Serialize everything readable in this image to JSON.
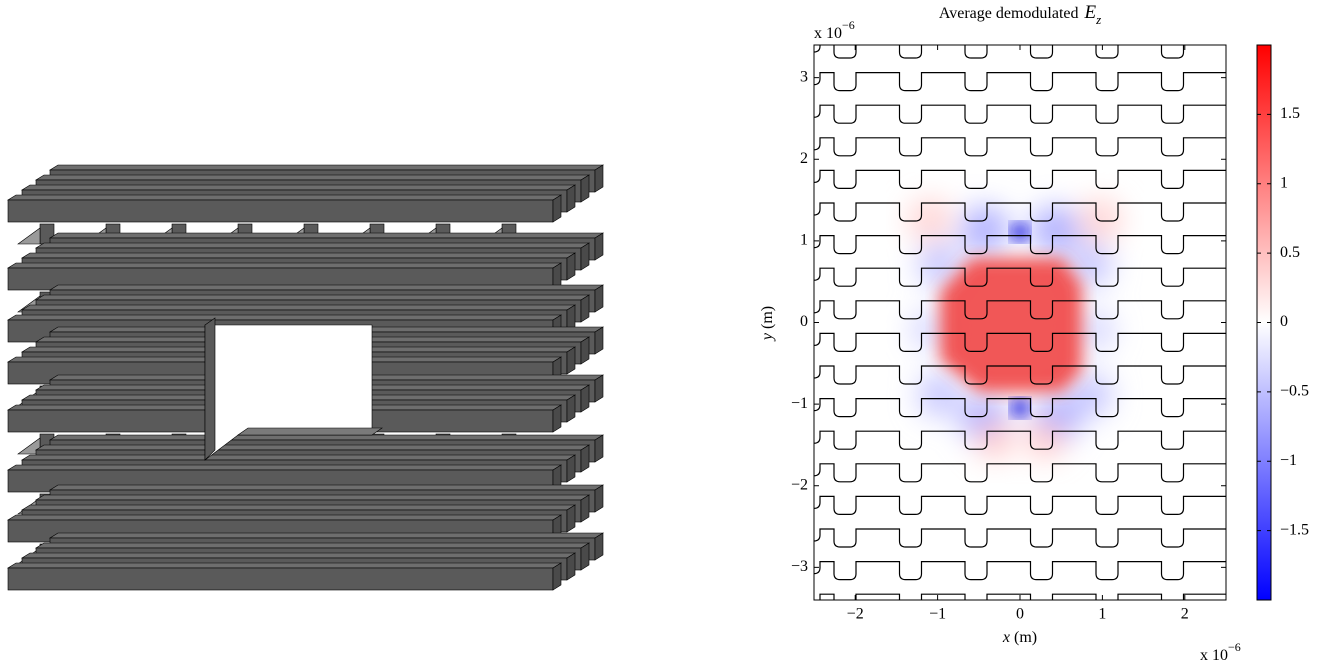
{
  "chart_data": {
    "type": "heatmap",
    "title": "Average demodulated",
    "title_symbol": "E",
    "title_subscript": "z",
    "x_label_symbol": "x",
    "x_label_unit": "(m)",
    "y_label_symbol": "y",
    "y_label_unit": "(m)",
    "x_multiplier": "x 10",
    "x_multiplier_exponent": "−6",
    "y_multiplier": "x 10",
    "y_multiplier_exponent": "−6",
    "xlim": [
      -2.5,
      2.5
    ],
    "xticks": [
      {
        "value": -2,
        "label": "−2"
      },
      {
        "value": -1,
        "label": "−1"
      },
      0,
      1,
      2
    ],
    "ylim": [
      -3.4,
      3.4
    ],
    "yticks": [
      {
        "value": -3,
        "label": "−3"
      },
      {
        "value": -2,
        "label": "−2"
      },
      {
        "value": -1,
        "label": "−1"
      },
      0,
      1,
      2,
      3
    ],
    "colorbar": {
      "lim": [
        -2,
        2
      ],
      "ticks": [
        {
          "value": -1.5,
          "label": "−1.5"
        },
        {
          "value": -1,
          "label": "−1"
        },
        {
          "value": -0.5,
          "label": "−0.5"
        },
        0,
        0.5,
        1,
        1.5
      ],
      "colors": [
        "#0000ff",
        "#ffffff",
        "#ff0000"
      ]
    }
  }
}
